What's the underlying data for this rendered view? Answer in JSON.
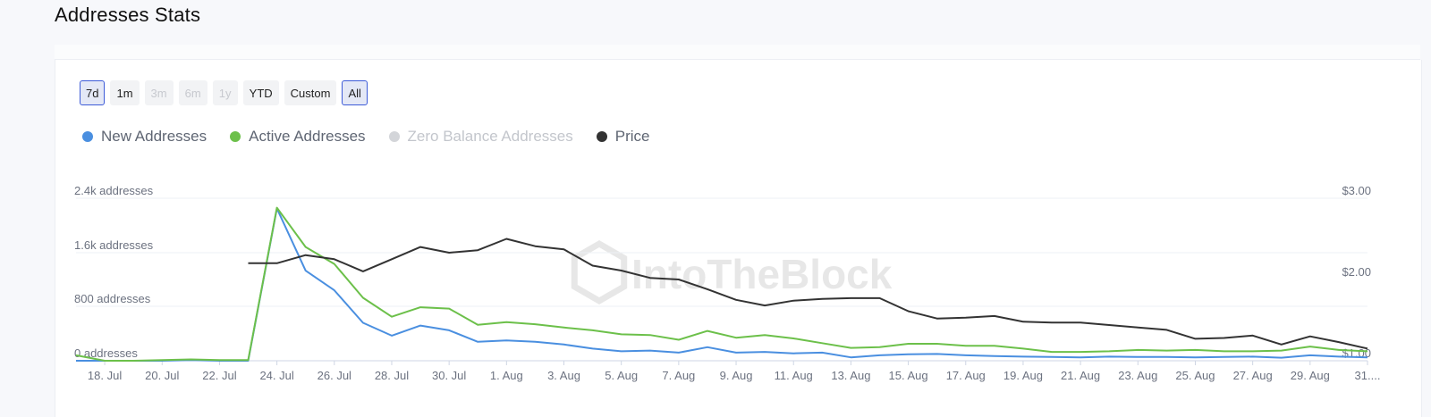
{
  "page": {
    "title": "Addresses Stats"
  },
  "range_buttons": [
    {
      "label": "7d",
      "state": "active"
    },
    {
      "label": "1m",
      "state": "normal"
    },
    {
      "label": "3m",
      "state": "disabled"
    },
    {
      "label": "6m",
      "state": "disabled"
    },
    {
      "label": "1y",
      "state": "disabled"
    },
    {
      "label": "YTD",
      "state": "normal"
    },
    {
      "label": "Custom",
      "state": "normal"
    },
    {
      "label": "All",
      "state": "active"
    }
  ],
  "legend": [
    {
      "label": "New Addresses",
      "color": "#4a8fe0",
      "visible": true
    },
    {
      "label": "Active Addresses",
      "color": "#6cc04a",
      "visible": true
    },
    {
      "label": "Zero Balance Addresses",
      "color": "#d3d5d9",
      "visible": false
    },
    {
      "label": "Price",
      "color": "#333333",
      "visible": true
    }
  ],
  "watermark": "IntoTheBlock",
  "chart_data": {
    "type": "line",
    "x": [
      "17. Jul",
      "18. Jul",
      "19. Jul",
      "20. Jul",
      "21. Jul",
      "22. Jul",
      "23. Jul",
      "24. Jul",
      "25. Jul",
      "26. Jul",
      "27. Jul",
      "28. Jul",
      "29. Jul",
      "30. Jul",
      "31. Jul",
      "1. Aug",
      "2. Aug",
      "3. Aug",
      "4. Aug",
      "5. Aug",
      "6. Aug",
      "7. Aug",
      "8. Aug",
      "9. Aug",
      "10. Aug",
      "11. Aug",
      "12. Aug",
      "13. Aug",
      "14. Aug",
      "15. Aug",
      "16. Aug",
      "17. Aug",
      "18. Aug",
      "19. Aug",
      "20. Aug",
      "21. Aug",
      "22. Aug",
      "23. Aug",
      "24. Aug",
      "25. Aug",
      "26. Aug",
      "27. Aug",
      "28. Aug",
      "29. Aug",
      "30. Aug",
      "31. Aug"
    ],
    "x_tick_labels": [
      "18. Jul",
      "20. Jul",
      "22. Jul",
      "24. Jul",
      "26. Jul",
      "28. Jul",
      "30. Jul",
      "1. Aug",
      "3. Aug",
      "5. Aug",
      "7. Aug",
      "9. Aug",
      "11. Aug",
      "13. Aug",
      "15. Aug",
      "17. Aug",
      "19. Aug",
      "21. Aug",
      "23. Aug",
      "25. Aug",
      "27. Aug",
      "29. Aug",
      "31...."
    ],
    "y_left": {
      "label_unit": "addresses",
      "ticks": [
        "0 addresses",
        "800 addresses",
        "1.6k addresses",
        "2.4k addresses"
      ],
      "range": [
        0,
        2400
      ]
    },
    "y_right": {
      "ticks": [
        "$1.00",
        "$2.00",
        "$3.00"
      ],
      "range": [
        1.0,
        3.0
      ]
    },
    "series": [
      {
        "name": "New Addresses",
        "axis": "left",
        "color": "#4a8fe0",
        "values": [
          0,
          0,
          0,
          0,
          10,
          0,
          0,
          2250,
          1330,
          1040,
          560,
          370,
          520,
          450,
          280,
          300,
          280,
          240,
          180,
          140,
          150,
          120,
          200,
          120,
          130,
          110,
          120,
          50,
          80,
          95,
          100,
          80,
          70,
          60,
          55,
          50,
          60,
          55,
          55,
          50,
          55,
          60,
          45,
          80,
          60,
          50
        ]
      },
      {
        "name": "Active Addresses",
        "axis": "left",
        "color": "#6cc04a",
        "values": [
          80,
          0,
          0,
          10,
          20,
          10,
          10,
          2260,
          1680,
          1430,
          930,
          650,
          790,
          770,
          530,
          570,
          540,
          490,
          450,
          390,
          380,
          310,
          440,
          340,
          380,
          330,
          260,
          190,
          200,
          250,
          250,
          220,
          220,
          180,
          130,
          130,
          140,
          160,
          150,
          160,
          140,
          140,
          150,
          210,
          160,
          140
        ]
      },
      {
        "name": "Price",
        "axis": "right",
        "color": "#333333",
        "values": [
          null,
          null,
          null,
          null,
          null,
          null,
          2.2,
          2.2,
          2.3,
          2.25,
          2.1,
          2.25,
          2.4,
          2.33,
          2.36,
          2.5,
          2.41,
          2.37,
          2.17,
          2.11,
          2.02,
          2.0,
          1.88,
          1.75,
          1.68,
          1.74,
          1.76,
          1.77,
          1.77,
          1.61,
          1.52,
          1.53,
          1.55,
          1.48,
          1.47,
          1.47,
          1.44,
          1.41,
          1.38,
          1.27,
          1.28,
          1.31,
          1.2,
          1.3,
          1.23,
          1.15
        ]
      }
    ],
    "grid": true
  }
}
